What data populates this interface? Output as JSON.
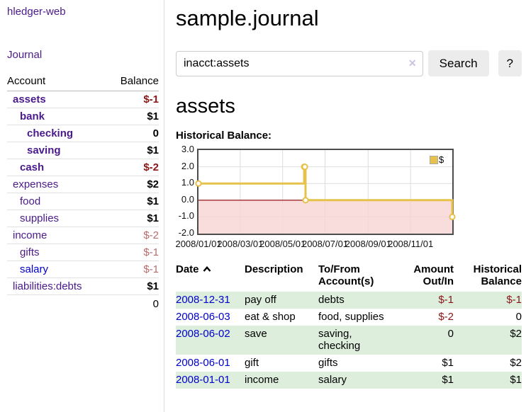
{
  "app": {
    "title": "hledger-web",
    "nav_journal": "Journal"
  },
  "sidebar": {
    "columns": {
      "account": "Account",
      "balance": "Balance"
    },
    "accounts": [
      {
        "name": "assets",
        "indent": 0,
        "bold": true,
        "blue": false,
        "balance": "$-1",
        "balance_style": "neg-strong"
      },
      {
        "name": "bank",
        "indent": 1,
        "bold": true,
        "blue": false,
        "balance": "$1",
        "balance_style": "pos"
      },
      {
        "name": "checking",
        "indent": 2,
        "bold": true,
        "blue": false,
        "balance": "0",
        "balance_style": "pos"
      },
      {
        "name": "saving",
        "indent": 2,
        "bold": true,
        "blue": false,
        "balance": "$1",
        "balance_style": "pos"
      },
      {
        "name": "cash",
        "indent": 1,
        "bold": true,
        "blue": false,
        "balance": "$-2",
        "balance_style": "neg-strong"
      },
      {
        "name": "expenses",
        "indent": 0,
        "bold": false,
        "blue": false,
        "balance": "$2",
        "balance_style": "pos"
      },
      {
        "name": "food",
        "indent": 1,
        "bold": false,
        "blue": false,
        "balance": "$1",
        "balance_style": "pos"
      },
      {
        "name": "supplies",
        "indent": 1,
        "bold": false,
        "blue": false,
        "balance": "$1",
        "balance_style": "pos"
      },
      {
        "name": "income",
        "indent": 0,
        "bold": false,
        "blue": false,
        "balance": "$-2",
        "balance_style": "neg-light"
      },
      {
        "name": "gifts",
        "indent": 1,
        "bold": false,
        "blue": false,
        "balance": "$-1",
        "balance_style": "neg-light"
      },
      {
        "name": "salary",
        "indent": 1,
        "bold": false,
        "blue": true,
        "balance": "$-1",
        "balance_style": "neg-light"
      },
      {
        "name": "liabilities:debts",
        "indent": 0,
        "bold": false,
        "blue": false,
        "balance": "$1",
        "balance_style": "pos"
      }
    ],
    "total": "0"
  },
  "header": {
    "title": "sample.journal"
  },
  "search": {
    "value": "inacct:assets",
    "clear_icon": "✕",
    "button_label": "Search",
    "help_label": "?"
  },
  "account_page": {
    "heading": "assets",
    "chart_title": "Historical Balance:"
  },
  "chart_data": {
    "type": "line",
    "title": "Historical Balance",
    "series": [
      {
        "name": "$",
        "color": "#e6c24a",
        "points": [
          [
            "2008-01-01",
            1
          ],
          [
            "2008-06-01",
            2
          ],
          [
            "2008-06-02",
            2
          ],
          [
            "2008-06-03",
            0
          ],
          [
            "2008-12-31",
            -1
          ]
        ]
      }
    ],
    "x_range": [
      "2008-01-01",
      "2008-12-31"
    ],
    "ylim": [
      -2,
      3
    ],
    "y_ticks": [
      "3.0",
      "2.0",
      "1.0",
      "0.0",
      "-1.0",
      "-2.0"
    ],
    "x_ticks": [
      "2008/01/01",
      "2008/03/01",
      "2008/05/01",
      "2008/07/01",
      "2008/09/01",
      "2008/11/01"
    ],
    "legend": {
      "label": "$",
      "position": "top-right"
    },
    "grid": true,
    "negative_region_color": "#f7d4d4",
    "zero_line_color": "#8a0000"
  },
  "transactions": {
    "columns": [
      "Date",
      "Description",
      "To/From Account(s)",
      "Amount Out/In",
      "Historical Balance"
    ],
    "rows": [
      {
        "date": "2008-12-31",
        "description": "pay off",
        "accounts": "debts",
        "amount": "$-1",
        "amount_neg": true,
        "balance": "$-1",
        "balance_neg": true,
        "shaded": true
      },
      {
        "date": "2008-06-03",
        "description": "eat & shop",
        "accounts": "food, supplies",
        "amount": "$-2",
        "amount_neg": true,
        "balance": "0",
        "balance_neg": false,
        "shaded": false
      },
      {
        "date": "2008-06-02",
        "description": "save",
        "accounts": "saving, checking",
        "amount": "0",
        "amount_neg": false,
        "balance": "$2",
        "balance_neg": false,
        "shaded": true
      },
      {
        "date": "2008-06-01",
        "description": "gift",
        "accounts": "gifts",
        "amount": "$1",
        "amount_neg": false,
        "balance": "$2",
        "balance_neg": false,
        "shaded": false
      },
      {
        "date": "2008-01-01",
        "description": "income",
        "accounts": "salary",
        "amount": "$1",
        "amount_neg": false,
        "balance": "$1",
        "balance_neg": false,
        "shaded": true
      }
    ]
  }
}
